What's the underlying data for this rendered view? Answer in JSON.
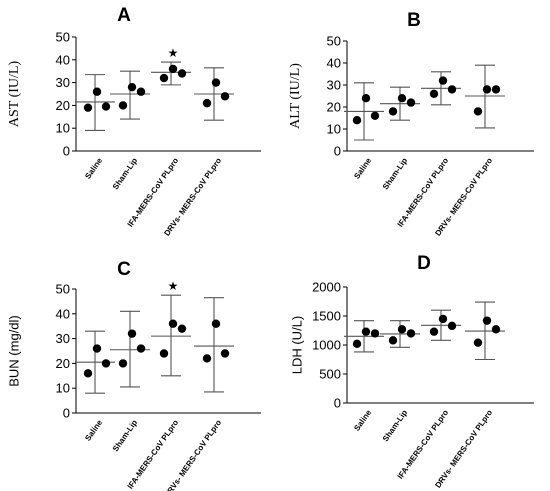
{
  "chart_data": [
    {
      "type": "scatter",
      "panel": "A",
      "ylabel": "AST (IU/L)",
      "ylabel_font": "serif",
      "ylim": [
        0,
        50
      ],
      "yticks": [
        0,
        10,
        20,
        30,
        40,
        50
      ],
      "categories": [
        "Saline",
        "Sham-Lip",
        "IFA-MERS-CoV PLpro",
        "DRVs- MERS-CoV PLpro"
      ],
      "points": [
        [
          19,
          19.5,
          26
        ],
        [
          20,
          26,
          28
        ],
        [
          32,
          34,
          36
        ],
        [
          21,
          24,
          30
        ]
      ],
      "mean": [
        21.5,
        25,
        34.5,
        25
      ],
      "sd_low": [
        9,
        14,
        29,
        13.5
      ],
      "sd_high": [
        33.5,
        35,
        39,
        36.5
      ],
      "significance": [
        "",
        "",
        "★",
        ""
      ]
    },
    {
      "type": "scatter",
      "panel": "B",
      "ylabel": "ALT (IU/L)",
      "ylabel_font": "serif",
      "ylim": [
        0,
        50
      ],
      "yticks": [
        0,
        10,
        20,
        30,
        40,
        50
      ],
      "categories": [
        "Saline",
        "Sham-Lip",
        "IFA-MERS-CoV PLpro",
        "DRVs- MERS-CoV PLpro"
      ],
      "points": [
        [
          14,
          16,
          24
        ],
        [
          18,
          22,
          24
        ],
        [
          26,
          28,
          32
        ],
        [
          18,
          28,
          28
        ]
      ],
      "mean": [
        18,
        21.5,
        28.5,
        25
      ],
      "sd_low": [
        5,
        14,
        21,
        10.5
      ],
      "sd_high": [
        31,
        29,
        36,
        39
      ],
      "significance": [
        "",
        "",
        "",
        ""
      ]
    },
    {
      "type": "scatter",
      "panel": "C",
      "ylabel": "BUN (mg/dl)",
      "ylabel_font": "sans",
      "ylim": [
        0,
        50
      ],
      "yticks": [
        0,
        10,
        20,
        30,
        40,
        50
      ],
      "categories": [
        "Saline",
        "Sham-Lip",
        "IFA-MERS-CoV PLpro",
        "DRVs- MERS-CoV PLpro"
      ],
      "points": [
        [
          16,
          20,
          26
        ],
        [
          20,
          26,
          32
        ],
        [
          24,
          34,
          36
        ],
        [
          22,
          24,
          36
        ]
      ],
      "mean": [
        20.5,
        25.5,
        31,
        27
      ],
      "sd_low": [
        8,
        10.5,
        15,
        8.5
      ],
      "sd_high": [
        33,
        41,
        47.5,
        46.5
      ],
      "significance": [
        "",
        "",
        "★",
        ""
      ]
    },
    {
      "type": "scatter",
      "panel": "D",
      "ylabel": "LDH (U/L)",
      "ylabel_font": "sans",
      "ylim": [
        0,
        2000
      ],
      "yticks": [
        0,
        500,
        1000,
        1500,
        2000
      ],
      "categories": [
        "Saline",
        "Sham-Lip",
        "IFA-MERS-CoV PLpro",
        "DRVs- MERS-CoV PLpro"
      ],
      "points": [
        [
          1020,
          1200,
          1230
        ],
        [
          1080,
          1200,
          1270
        ],
        [
          1230,
          1330,
          1450
        ],
        [
          1040,
          1270,
          1420
        ]
      ],
      "mean": [
        1150,
        1190,
        1340,
        1240
      ],
      "sd_low": [
        880,
        960,
        1080,
        750
      ],
      "sd_high": [
        1420,
        1420,
        1600,
        1740
      ],
      "significance": [
        "",
        "",
        "",
        ""
      ]
    }
  ]
}
